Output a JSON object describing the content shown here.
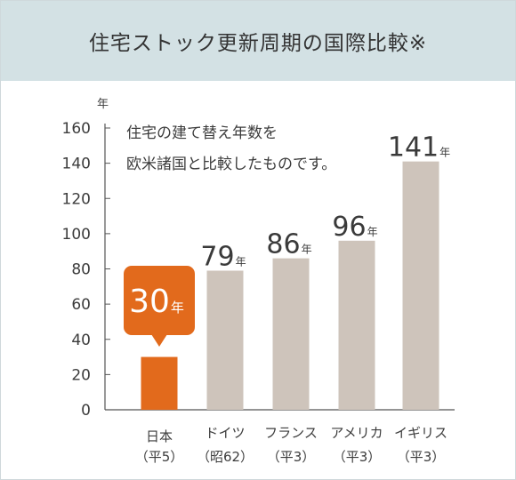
{
  "header": {
    "title": "住宅ストック更新周期の国際比較※"
  },
  "chart_data": {
    "type": "bar",
    "title": "住宅ストック更新周期の国際比較※",
    "ylabel": "年",
    "ylim": [
      0,
      160
    ],
    "yticks": [
      0,
      20,
      40,
      60,
      80,
      100,
      120,
      140,
      160
    ],
    "unit": "年",
    "categories": [
      "日本",
      "ドイツ",
      "フランス",
      "アメリカ",
      "イギリス"
    ],
    "category_notes": [
      "（平5）",
      "（昭62）",
      "（平3）",
      "（平3）",
      "（平3）"
    ],
    "values": [
      30,
      79,
      86,
      96,
      141
    ],
    "value_labels": [
      "30",
      "79",
      "86",
      "96",
      "141"
    ],
    "annotation": [
      "住宅の建て替え年数を",
      "欧米諸国と比較したものです。"
    ],
    "highlight_category": "日本",
    "colors": {
      "highlight": "#e26a1c",
      "bar": "#cec4bb",
      "axis": "#555555",
      "title_band": "#d3e1e4"
    }
  }
}
